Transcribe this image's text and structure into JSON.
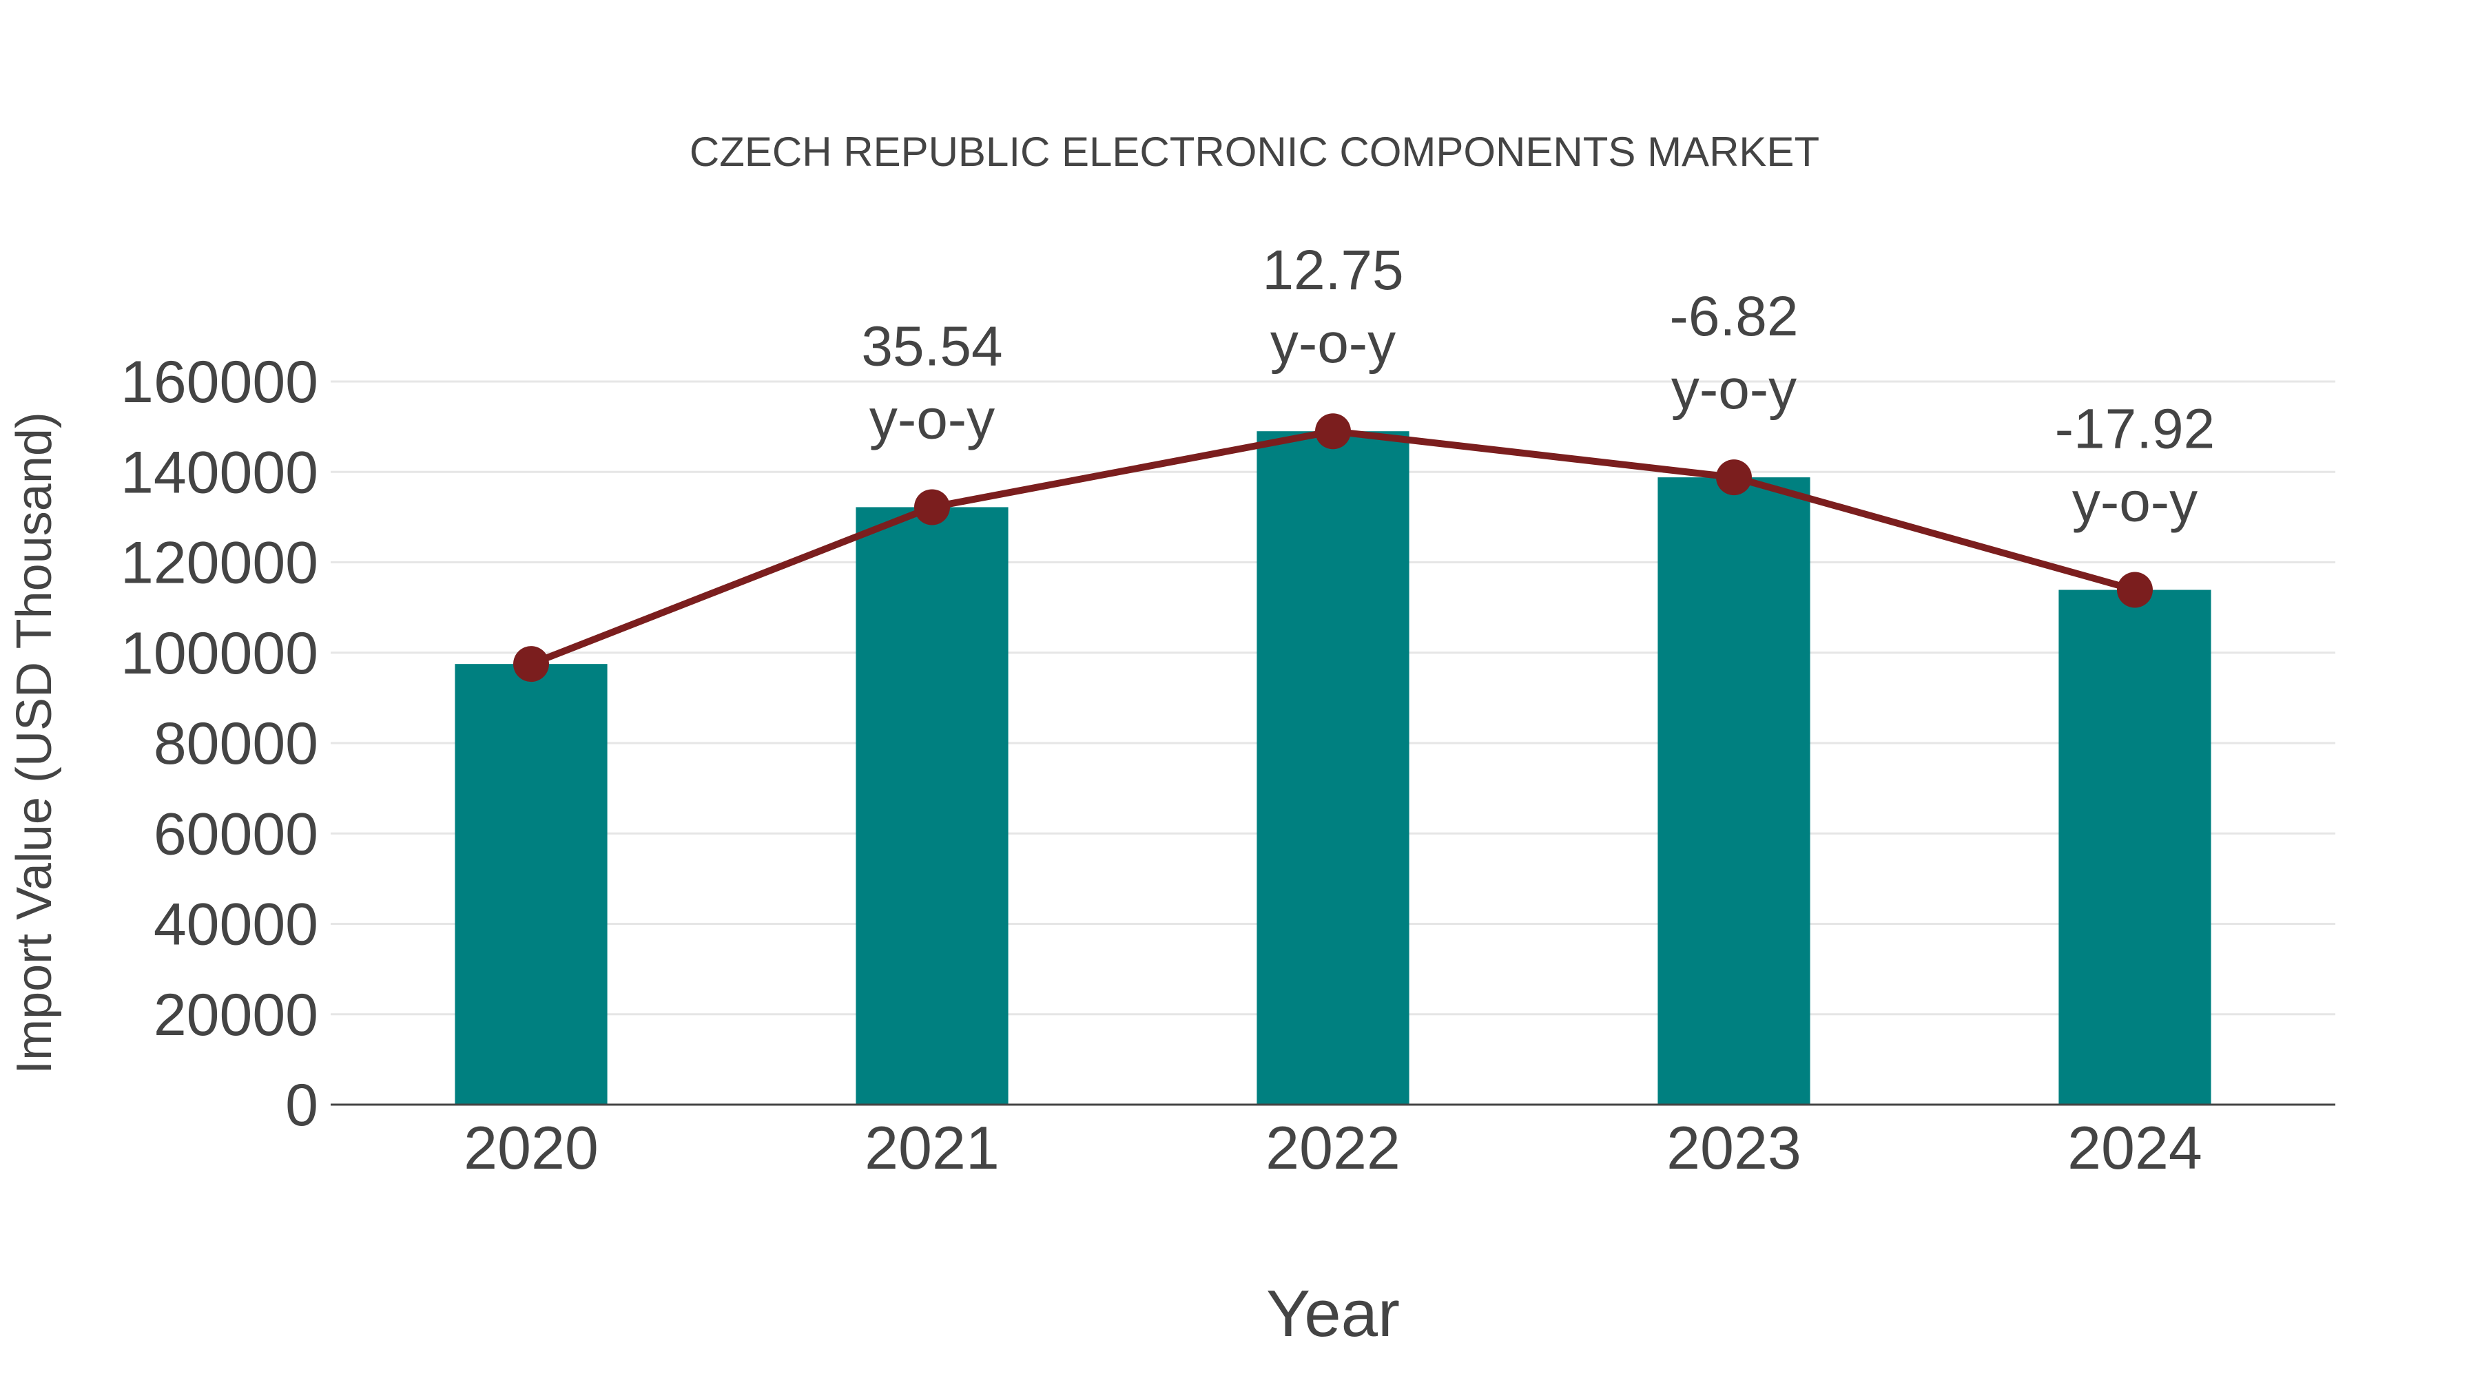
{
  "chart_data": {
    "type": "bar",
    "title": "CZECH REPUBLIC ELECTRONIC COMPONENTS MARKET",
    "xlabel": "Year",
    "ylabel": "Import Value (USD Thousand)",
    "categories": [
      "2020",
      "2021",
      "2022",
      "2023",
      "2024"
    ],
    "series": [
      {
        "name": "Import Value",
        "type": "bar",
        "color": "#008080",
        "values": [
          97500,
          132200,
          149000,
          138800,
          113900
        ]
      },
      {
        "name": "Import Value trend",
        "type": "line",
        "color": "#7B1E1E",
        "values": [
          97500,
          132200,
          149000,
          138800,
          113900
        ]
      }
    ],
    "annotations": [
      {
        "category": "2021",
        "value": "35.54",
        "suffix": "y-o-y"
      },
      {
        "category": "2022",
        "value": "12.75",
        "suffix": "y-o-y"
      },
      {
        "category": "2023",
        "value": "-6.82",
        "suffix": "y-o-y"
      },
      {
        "category": "2024",
        "value": "-17.92",
        "suffix": "y-o-y"
      }
    ],
    "yticks": [
      0,
      20000,
      40000,
      60000,
      80000,
      100000,
      120000,
      140000,
      160000
    ],
    "ylim": [
      0,
      160000
    ],
    "grid": true,
    "legend": "none"
  },
  "colors": {
    "bar": "#008080",
    "line": "#7B1E1E",
    "text": "#444444",
    "grid": "#E6E6E6",
    "axis": "#444444"
  }
}
